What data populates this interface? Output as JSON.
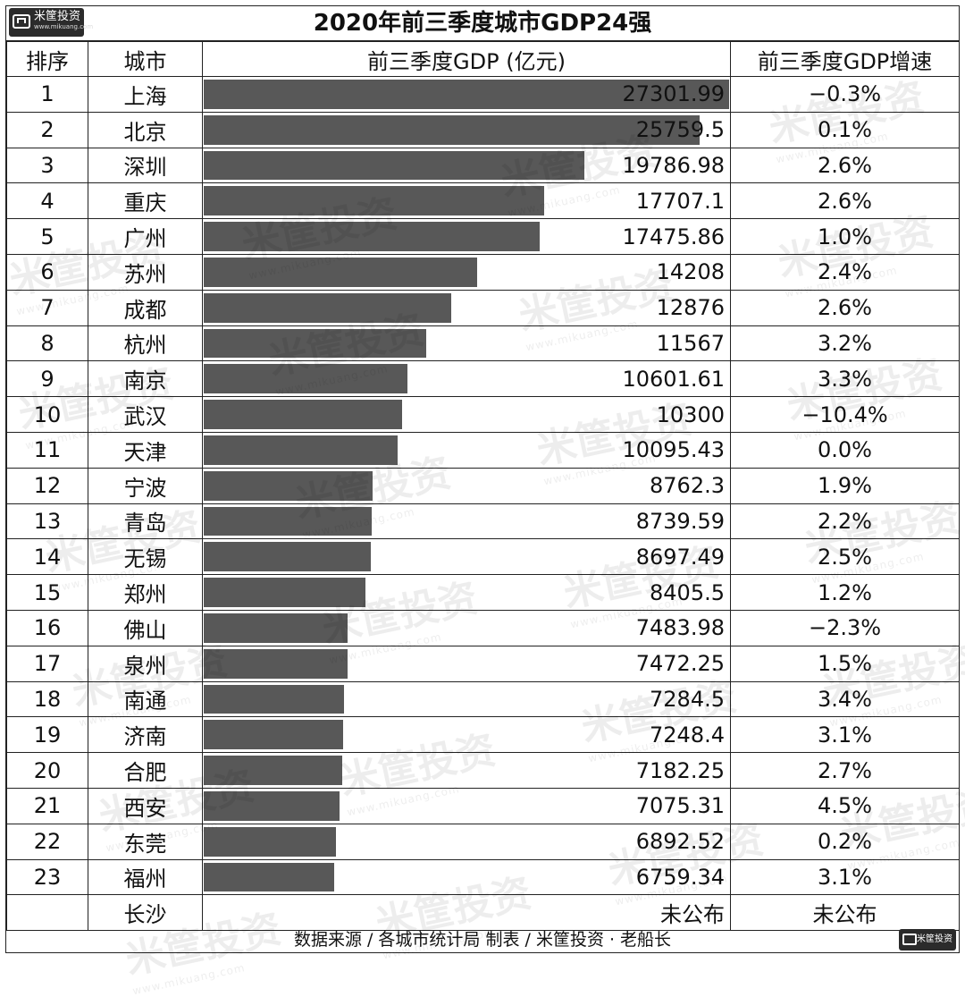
{
  "title": "2020年前三季度城市GDP24强",
  "logo": {
    "name": "米筐投资",
    "url": "www.mikuang.com"
  },
  "watermark": {
    "text": "米筐投资",
    "url": "www.mikuang.com"
  },
  "headers": {
    "rank": "排序",
    "city": "城市",
    "gdp": "前三季度GDP (亿元)",
    "growth": "前三季度GDP增速"
  },
  "footer": "数据来源 / 各城市统计局 制表 / 米筐投资 · 老船长",
  "chart_data": {
    "type": "bar",
    "title": "2020年前三季度城市GDP24强",
    "categories": [
      "上海",
      "北京",
      "深圳",
      "重庆",
      "广州",
      "苏州",
      "成都",
      "杭州",
      "南京",
      "武汉",
      "天津",
      "宁波",
      "青岛",
      "无锡",
      "郑州",
      "佛山",
      "泉州",
      "南通",
      "济南",
      "合肥",
      "西安",
      "东莞",
      "福州"
    ],
    "series": [
      {
        "name": "前三季度GDP (亿元)",
        "values": [
          27301.99,
          25759.5,
          19786.98,
          17707.1,
          17475.86,
          14208,
          12876,
          11567,
          10601.61,
          10300,
          10095.43,
          8762.3,
          8739.59,
          8697.49,
          8405.5,
          7483.98,
          7472.25,
          7284.5,
          7248.4,
          7182.25,
          7075.31,
          6892.52,
          6759.34
        ]
      }
    ],
    "xlim": [
      0,
      27301.99
    ]
  },
  "rows": [
    {
      "rank": "1",
      "city": "上海",
      "gdp": "27301.99",
      "growth": "−0.3%"
    },
    {
      "rank": "2",
      "city": "北京",
      "gdp": "25759.5",
      "growth": "0.1%"
    },
    {
      "rank": "3",
      "city": "深圳",
      "gdp": "19786.98",
      "growth": "2.6%"
    },
    {
      "rank": "4",
      "city": "重庆",
      "gdp": "17707.1",
      "growth": "2.6%"
    },
    {
      "rank": "5",
      "city": "广州",
      "gdp": "17475.86",
      "growth": "1.0%"
    },
    {
      "rank": "6",
      "city": "苏州",
      "gdp": "14208",
      "growth": "2.4%"
    },
    {
      "rank": "7",
      "city": "成都",
      "gdp": "12876",
      "growth": "2.6%"
    },
    {
      "rank": "8",
      "city": "杭州",
      "gdp": "11567",
      "growth": "3.2%"
    },
    {
      "rank": "9",
      "city": "南京",
      "gdp": "10601.61",
      "growth": "3.3%"
    },
    {
      "rank": "10",
      "city": "武汉",
      "gdp": "10300",
      "growth": "−10.4%"
    },
    {
      "rank": "11",
      "city": "天津",
      "gdp": "10095.43",
      "growth": "0.0%"
    },
    {
      "rank": "12",
      "city": "宁波",
      "gdp": "8762.3",
      "growth": "1.9%"
    },
    {
      "rank": "13",
      "city": "青岛",
      "gdp": "8739.59",
      "growth": "2.2%"
    },
    {
      "rank": "14",
      "city": "无锡",
      "gdp": "8697.49",
      "growth": "2.5%"
    },
    {
      "rank": "15",
      "city": "郑州",
      "gdp": "8405.5",
      "growth": "1.2%"
    },
    {
      "rank": "16",
      "city": "佛山",
      "gdp": "7483.98",
      "growth": "−2.3%"
    },
    {
      "rank": "17",
      "city": "泉州",
      "gdp": "7472.25",
      "growth": "1.5%"
    },
    {
      "rank": "18",
      "city": "南通",
      "gdp": "7284.5",
      "growth": "3.4%"
    },
    {
      "rank": "19",
      "city": "济南",
      "gdp": "7248.4",
      "growth": "3.1%"
    },
    {
      "rank": "20",
      "city": "合肥",
      "gdp": "7182.25",
      "growth": "2.7%"
    },
    {
      "rank": "21",
      "city": "西安",
      "gdp": "7075.31",
      "growth": "4.5%"
    },
    {
      "rank": "22",
      "city": "东莞",
      "gdp": "6892.52",
      "growth": "0.2%"
    },
    {
      "rank": "23",
      "city": "福州",
      "gdp": "6759.34",
      "growth": "3.1%"
    },
    {
      "rank": "",
      "city": "长沙",
      "gdp": "未公布",
      "growth": "未公布"
    }
  ]
}
